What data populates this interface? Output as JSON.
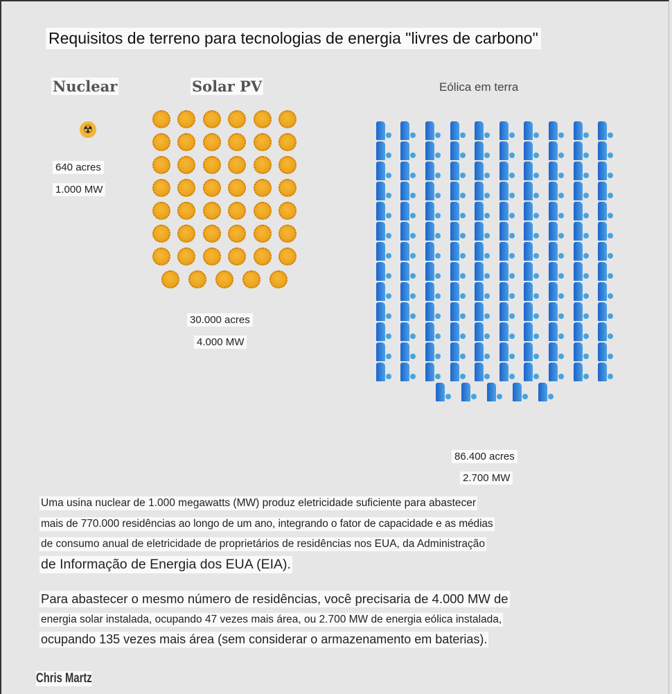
{
  "title": "Requisitos de terreno para tecnologias de energia \"livres de carbono\"",
  "nuclear": {
    "heading": "Nuclear",
    "area": "640 acres",
    "capacity": "1.000 MW",
    "icon": "radiation-icon",
    "icon_count": 1
  },
  "solar": {
    "heading": "Solar PV",
    "area": "30.000 acres",
    "capacity": "4.000 MW",
    "icon": "sun-icon",
    "rows": [
      6,
      6,
      6,
      6,
      6,
      6,
      6,
      5
    ],
    "color": "#f0a424"
  },
  "wind": {
    "heading": "Eólica em terra",
    "area": "86.400 acres",
    "capacity": "2.700 MW",
    "icon": "wind-turbine-icon",
    "rows": [
      10,
      10,
      10,
      10,
      10,
      10,
      10,
      10,
      10,
      10,
      10,
      10,
      10,
      5
    ],
    "color": "#2f7fd6"
  },
  "paragraphs": [
    [
      "Uma usina nuclear de 1.000 megawatts (MW) produz eletricidade suficiente para abastecer",
      "mais de 770.000 residências ao longo de um ano, integrando o fator de capacidade e as médias",
      "de consumo anual de eletricidade de proprietários de residências nos EUA, da Administração",
      "de Informação de Energia dos EUA (EIA)."
    ],
    [
      "Para abastecer o mesmo número de residências, você precisaria de 4.000 MW de",
      "energia solar instalada, ocupando 47 vezes mais área, ou 2.700 MW de energia eólica instalada,",
      "ocupando 135 vezes mais área (sem considerar o armazenamento em baterias)."
    ]
  ],
  "author": "Chris Martz"
}
